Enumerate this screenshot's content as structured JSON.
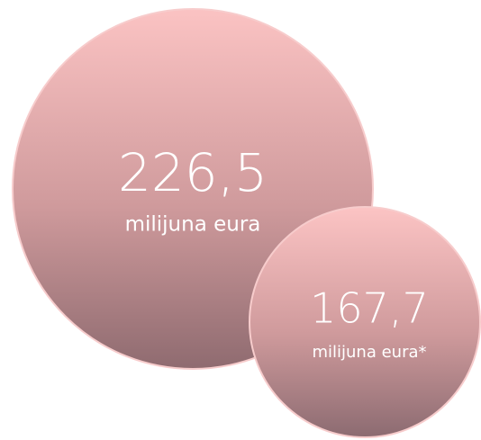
{
  "bubbles": [
    {
      "value": "226,5",
      "unit": "milijuna eura"
    },
    {
      "value": "167,7",
      "unit": "milijuna eura*"
    }
  ]
}
